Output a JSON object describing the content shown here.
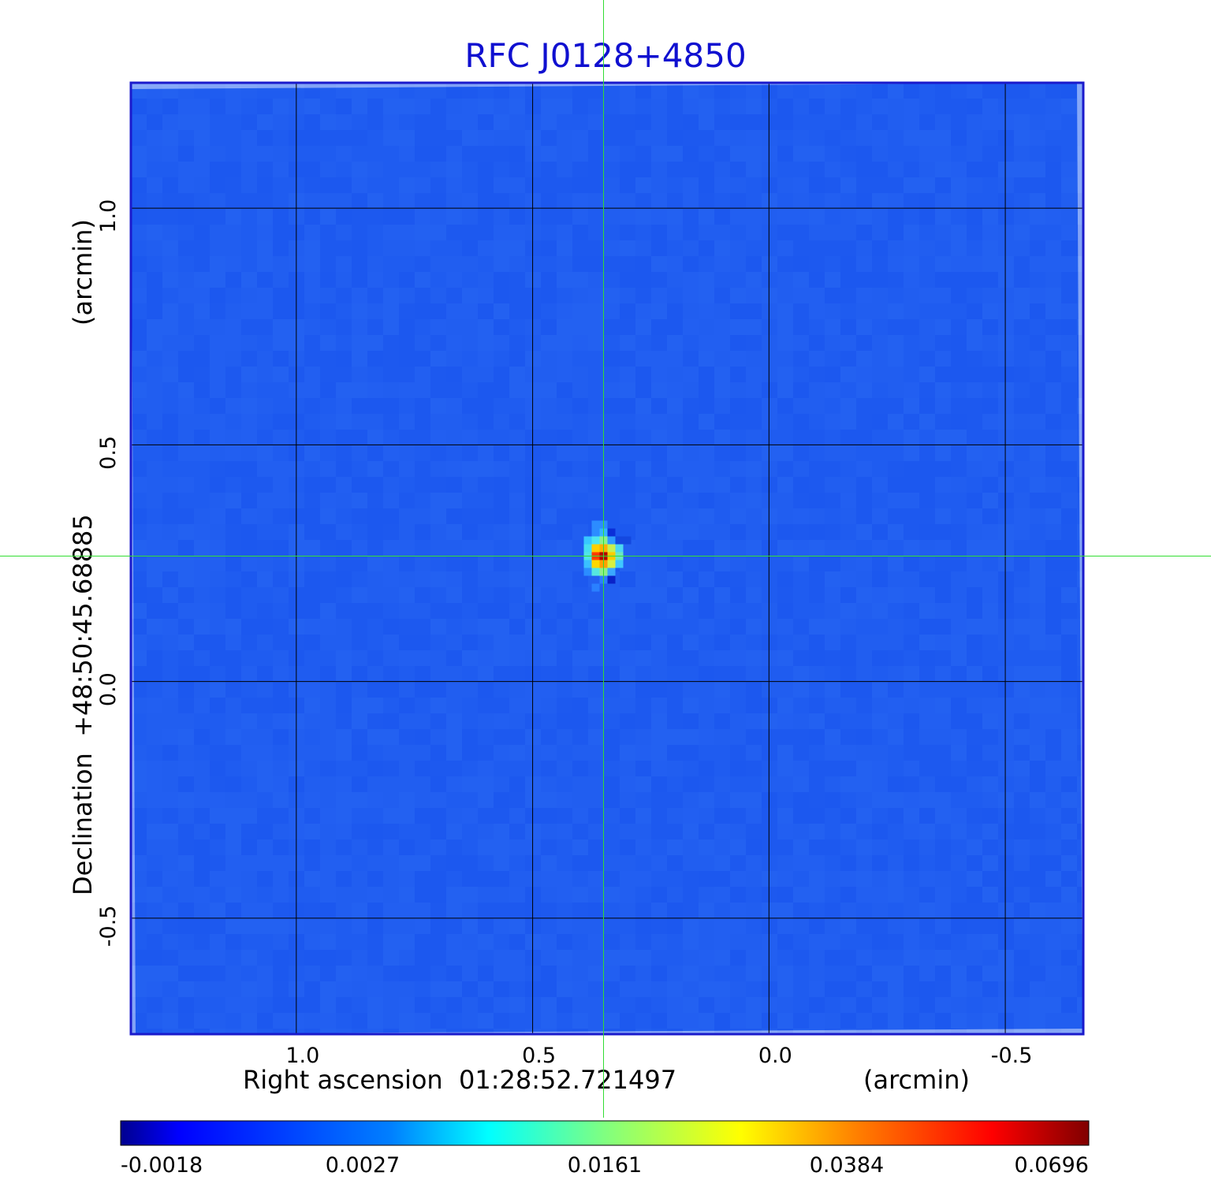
{
  "colors": {
    "title": "#1010d0",
    "frame": "#1a1acc",
    "background_pixel": "#1f5cf0",
    "crosshair": "#33dd33",
    "grid": "#000000",
    "colormap": [
      "#00008f",
      "#0000ff",
      "#0080ff",
      "#00ffff",
      "#80ff80",
      "#ffff00",
      "#ff8000",
      "#ff0000",
      "#800000"
    ]
  },
  "chart_data": {
    "type": "heatmap",
    "title": "RFC J0128+4850",
    "xlabel": "Right ascension  01:28:52.721497",
    "xunit": "(arcmin)",
    "ylabel": "Declination  +48:50:45.68885",
    "yunit": "(arcmin)",
    "xlim": [
      1.35,
      -0.665
    ],
    "ylim": [
      -0.745,
      1.265
    ],
    "x_ticks": [
      1.0,
      0.5,
      0.0,
      -0.5
    ],
    "x_tick_labels": [
      "1.0",
      "0.5",
      "0.0",
      "-0.5"
    ],
    "y_ticks": [
      1.0,
      0.5,
      0.0,
      -0.5
    ],
    "y_tick_labels": [
      "1.0",
      "0.5",
      "0.0",
      "-0.5"
    ],
    "grid": true,
    "source_peak": {
      "x": 0.35,
      "y": 0.265,
      "value": 0.0696
    },
    "crosshair": {
      "x": 0.35,
      "y": 0.265
    },
    "colorbar": {
      "ticks": [
        -0.0018,
        0.0027,
        0.0161,
        0.0384,
        0.0696
      ],
      "tick_labels": [
        "-0.0018",
        "0.0027",
        "0.0161",
        "0.0384",
        "0.0696"
      ],
      "placement": "bottom"
    }
  }
}
